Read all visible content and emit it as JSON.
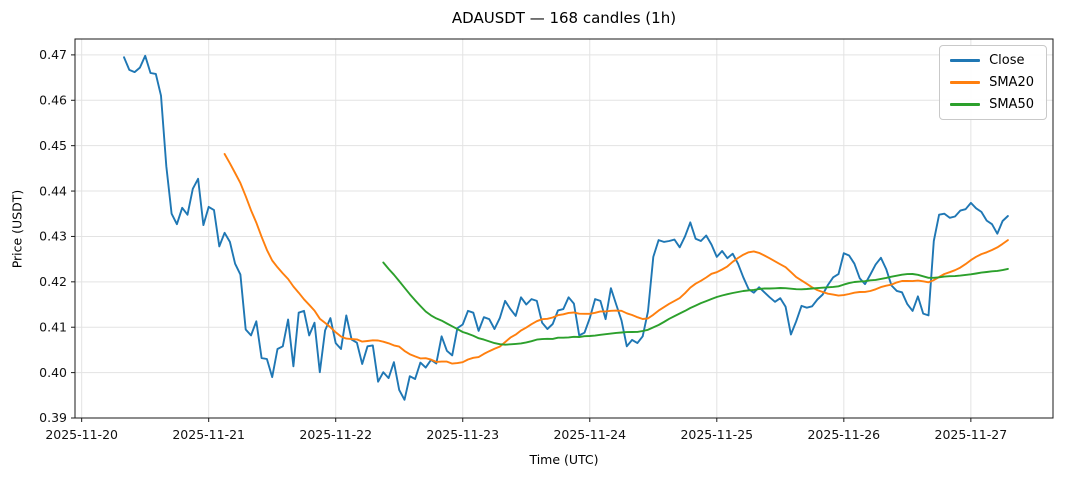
{
  "chart": {
    "title": "ADAUSDT — 168 candles (1h)",
    "xlabel": "Time (UTC)",
    "ylabel": "Price (USDT)",
    "legend": [
      {
        "label": "Close",
        "color": "#1f77b4"
      },
      {
        "label": "SMA20",
        "color": "#ff7f0e"
      },
      {
        "label": "SMA50",
        "color": "#2ca02c"
      }
    ]
  },
  "chart_data": {
    "type": "line",
    "title": "ADAUSDT — 168 candles (1h)",
    "xlabel": "Time (UTC)",
    "ylabel": "Price (USDT)",
    "grid": true,
    "legend_position": "upper right",
    "n_points": 168,
    "interval": "1h",
    "x_start": "2025-11-20 08:00",
    "x_tick_labels": [
      "2025-11-20",
      "2025-11-21",
      "2025-11-22",
      "2025-11-23",
      "2025-11-24",
      "2025-11-25",
      "2025-11-26",
      "2025-11-27"
    ],
    "x_first_tick_hour_index": -8,
    "x_tick_step_hours": 24,
    "y_ticks": [
      0.39,
      0.4,
      0.41,
      0.42,
      0.43,
      0.44,
      0.45,
      0.46,
      0.47
    ],
    "ylim": [
      0.39,
      0.4735
    ],
    "axis_colors": {
      "grid": "#e3e3e3",
      "spine": "#1a1a1a",
      "tick_text": "#111111"
    },
    "series": [
      {
        "name": "Close",
        "color": "#1f77b4",
        "values": [
          0.4695,
          0.4667,
          0.4662,
          0.4672,
          0.4698,
          0.466,
          0.4658,
          0.461,
          0.4455,
          0.435,
          0.4327,
          0.4363,
          0.4348,
          0.4405,
          0.4427,
          0.4325,
          0.4365,
          0.4358,
          0.4278,
          0.4308,
          0.4288,
          0.424,
          0.4216,
          0.4095,
          0.4082,
          0.4113,
          0.4032,
          0.403,
          0.399,
          0.4052,
          0.4058,
          0.4117,
          0.4014,
          0.4132,
          0.4136,
          0.4082,
          0.411,
          0.4001,
          0.4093,
          0.412,
          0.4065,
          0.4052,
          0.4126,
          0.4073,
          0.4066,
          0.4019,
          0.4058,
          0.406,
          0.398,
          0.4001,
          0.3988,
          0.4023,
          0.3962,
          0.394,
          0.3992,
          0.3986,
          0.4022,
          0.4011,
          0.4028,
          0.402,
          0.408,
          0.4048,
          0.4038,
          0.4098,
          0.4106,
          0.4136,
          0.4132,
          0.4092,
          0.4122,
          0.4118,
          0.4096,
          0.412,
          0.4158,
          0.414,
          0.4125,
          0.4166,
          0.415,
          0.4162,
          0.4158,
          0.411,
          0.4096,
          0.4107,
          0.4137,
          0.414,
          0.4166,
          0.4152,
          0.4082,
          0.4088,
          0.412,
          0.4162,
          0.4158,
          0.4118,
          0.4186,
          0.415,
          0.4115,
          0.4058,
          0.4072,
          0.4065,
          0.408,
          0.4135,
          0.4255,
          0.4292,
          0.4288,
          0.429,
          0.4293,
          0.4276,
          0.43,
          0.4331,
          0.4295,
          0.429,
          0.4302,
          0.4282,
          0.4255,
          0.4268,
          0.4252,
          0.4262,
          0.424,
          0.421,
          0.4184,
          0.4176,
          0.4188,
          0.4177,
          0.4166,
          0.4156,
          0.4164,
          0.4145,
          0.4084,
          0.4113,
          0.4147,
          0.4143,
          0.4146,
          0.4161,
          0.4172,
          0.4193,
          0.421,
          0.4217,
          0.4263,
          0.4258,
          0.424,
          0.4208,
          0.4195,
          0.4216,
          0.4238,
          0.4253,
          0.4228,
          0.4192,
          0.418,
          0.4177,
          0.4151,
          0.4136,
          0.4168,
          0.413,
          0.4126,
          0.429,
          0.4348,
          0.435,
          0.4341,
          0.4344,
          0.4357,
          0.436,
          0.4374,
          0.4362,
          0.4354,
          0.4335,
          0.4327,
          0.4306,
          0.4334,
          0.4345
        ]
      },
      {
        "name": "SMA20",
        "color": "#ff7f0e",
        "derived": "sma",
        "window": 20,
        "first_value": 0.4476,
        "min_value": 0.4013,
        "peak_value": 0.4242,
        "last_value": 0.4292
      },
      {
        "name": "SMA50",
        "color": "#2ca02c",
        "derived": "sma",
        "window": 50,
        "first_value": 0.4243,
        "min_value": 0.4032,
        "last_value": 0.4226
      }
    ]
  }
}
